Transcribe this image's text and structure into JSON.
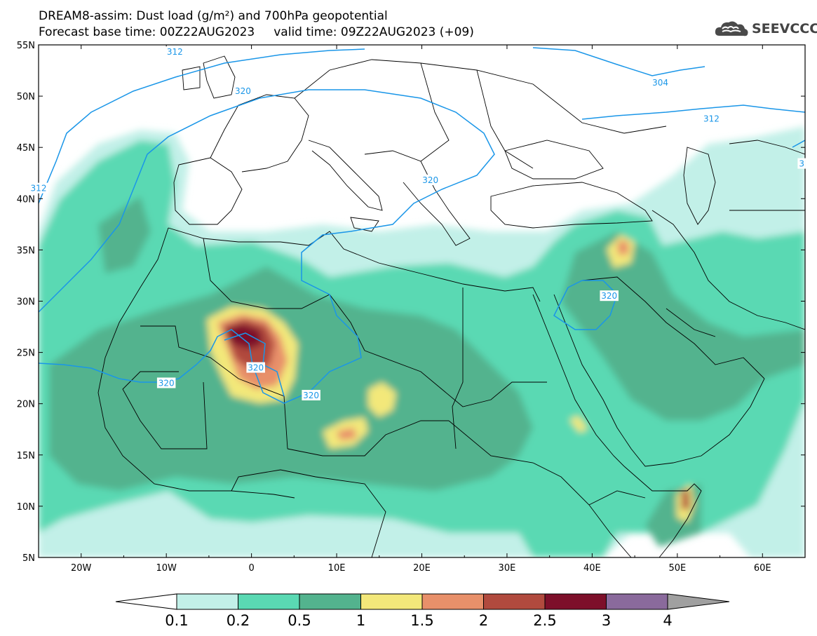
{
  "title": {
    "line1": "DREAM8-assim: Dust load (g/m²) and 700hPa geopotential",
    "line2": "Forecast base time: 00Z22AUG2023     valid time: 09Z22AUG2023 (+09)"
  },
  "logo": {
    "text": "SEEVCCC",
    "icon": "cloud-icon"
  },
  "map": {
    "lon_range": [
      -25,
      65
    ],
    "lat_range": [
      5,
      55
    ],
    "lat_labels": [
      "55N",
      "50N",
      "45N",
      "40N",
      "35N",
      "30N",
      "25N",
      "20N",
      "15N",
      "10N",
      "5N"
    ],
    "lon_labels": [
      "20W",
      "10W",
      "0",
      "10E",
      "20E",
      "30E",
      "40E",
      "50E",
      "60E"
    ],
    "contour_labels": [
      {
        "text": "312",
        "lon": -9,
        "lat": 54.3
      },
      {
        "text": "304",
        "lon": 48,
        "lat": 51.3
      },
      {
        "text": "320",
        "lon": -1,
        "lat": 50.5
      },
      {
        "text": "312",
        "lon": 54,
        "lat": 47.8
      },
      {
        "text": "312",
        "lon": -25,
        "lat": 41.0
      },
      {
        "text": "320",
        "lon": 21,
        "lat": 41.8
      },
      {
        "text": "320",
        "lon": 42,
        "lat": 30.5
      },
      {
        "text": "320",
        "lon": 0.5,
        "lat": 23.5
      },
      {
        "text": "320",
        "lon": -10,
        "lat": 22.0
      },
      {
        "text": "320",
        "lon": 7,
        "lat": 20.8
      },
      {
        "text": "3",
        "lon": 64.6,
        "lat": 43.4
      }
    ]
  },
  "colorbar": {
    "labels": [
      "0.1",
      "0.2",
      "0.5",
      "1",
      "1.5",
      "2",
      "2.5",
      "3",
      "4"
    ],
    "colors": [
      "#c2f0e8",
      "#5ad9b3",
      "#53b38e",
      "#f3e87a",
      "#e8906a",
      "#b14a3e",
      "#7d0f2a",
      "#8a6a9c"
    ],
    "under_color": "#ffffff",
    "over_color": "#a0a0a0"
  },
  "colors": {
    "contour": "#1a96e8",
    "boundary": "#000000"
  }
}
